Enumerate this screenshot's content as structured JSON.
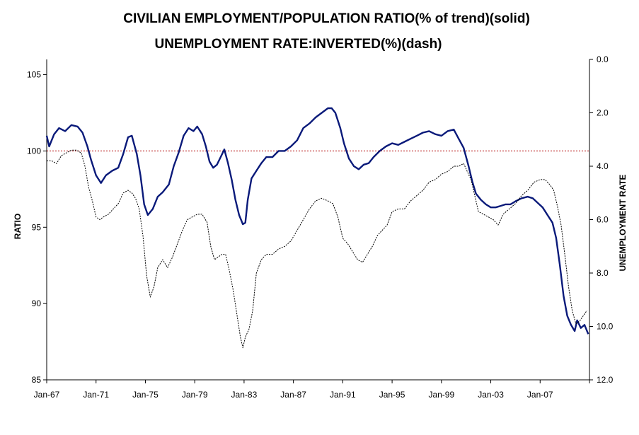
{
  "chart_data": {
    "type": "line",
    "title": "CIVILIAN EMPLOYMENT/POPULATION RATIO(% of trend)(solid)",
    "subtitle": "UNEMPLOYMENT RATE:INVERTED(%)(dash)",
    "ylabel": "RATIO",
    "y2label": "UNEMPLOYMENT RATE",
    "ylim": [
      85,
      106
    ],
    "yticks": [
      85,
      90,
      95,
      100,
      105
    ],
    "yticklabels": [
      "85",
      "90",
      "95",
      "100",
      "105"
    ],
    "y2lim": [
      12.0,
      0.0
    ],
    "y2ticks": [
      0,
      2,
      4,
      6,
      8,
      10,
      12
    ],
    "y2ticklabels": [
      "0.0",
      "2.0",
      "4.0",
      "6.0",
      "8.0",
      "10.0",
      "12.0"
    ],
    "xlim": [
      1967.0,
      2011.0
    ],
    "xticks": [
      1967,
      1971,
      1975,
      1979,
      1983,
      1987,
      1991,
      1995,
      1999,
      2003,
      2007,
      2011
    ],
    "xticklabels": [
      "Jan-67",
      "Jan-71",
      "Jan-75",
      "Jan-79",
      "Jan-83",
      "Jan-87",
      "Jan-91",
      "Jan-95",
      "Jan-99",
      "Jan-03",
      "Jan-07",
      ""
    ],
    "reference_line": {
      "value": 100,
      "style": "dotted",
      "color": "#b00000"
    },
    "series": [
      {
        "name": "Civilian employment/population ratio (% of trend)",
        "style": "solid",
        "axis": "left",
        "color": "#0a1a7a",
        "x": [
          1967.0,
          1967.2,
          1967.6,
          1968.0,
          1968.5,
          1969.0,
          1969.5,
          1969.9,
          1970.3,
          1970.6,
          1971.0,
          1971.4,
          1971.8,
          1972.3,
          1972.8,
          1973.2,
          1973.6,
          1973.9,
          1974.3,
          1974.6,
          1974.9,
          1975.2,
          1975.6,
          1976.0,
          1976.4,
          1976.9,
          1977.3,
          1977.7,
          1978.1,
          1978.5,
          1978.9,
          1979.2,
          1979.6,
          1979.9,
          1980.2,
          1980.5,
          1980.8,
          1981.1,
          1981.4,
          1981.7,
          1982.0,
          1982.3,
          1982.6,
          1982.9,
          1983.1,
          1983.3,
          1983.6,
          1984.0,
          1984.4,
          1984.8,
          1985.3,
          1985.8,
          1986.3,
          1986.8,
          1987.3,
          1987.8,
          1988.3,
          1988.8,
          1989.3,
          1989.8,
          1990.1,
          1990.4,
          1990.8,
          1991.1,
          1991.5,
          1991.9,
          1992.3,
          1992.7,
          1993.1,
          1993.5,
          1994.0,
          1994.5,
          1995.0,
          1995.5,
          1996.0,
          1996.5,
          1997.0,
          1997.5,
          1998.0,
          1998.5,
          1999.0,
          1999.5,
          2000.0,
          2000.4,
          2000.8,
          2001.2,
          2001.5,
          2001.8,
          2002.2,
          2002.6,
          2003.0,
          2003.4,
          2003.8,
          2004.2,
          2004.6,
          2005.0,
          2005.5,
          2006.0,
          2006.4,
          2006.8,
          2007.2,
          2007.6,
          2008.0,
          2008.3,
          2008.6,
          2008.9,
          2009.2,
          2009.5,
          2009.8,
          2010.0,
          2010.3,
          2010.6,
          2010.9
        ],
        "values": [
          101.0,
          100.3,
          101.1,
          101.5,
          101.3,
          101.7,
          101.6,
          101.2,
          100.3,
          99.4,
          98.4,
          97.9,
          98.4,
          98.7,
          98.9,
          99.8,
          100.9,
          101.0,
          99.8,
          98.4,
          96.5,
          95.8,
          96.2,
          97.0,
          97.3,
          97.8,
          99.0,
          99.9,
          101.0,
          101.5,
          101.3,
          101.6,
          101.1,
          100.3,
          99.3,
          98.9,
          99.1,
          99.6,
          100.1,
          99.2,
          98.1,
          96.8,
          95.8,
          95.2,
          95.3,
          96.8,
          98.2,
          98.7,
          99.2,
          99.6,
          99.6,
          100.0,
          100.0,
          100.3,
          100.7,
          101.5,
          101.8,
          102.2,
          102.5,
          102.8,
          102.8,
          102.5,
          101.5,
          100.5,
          99.5,
          99.0,
          98.8,
          99.1,
          99.2,
          99.6,
          100.0,
          100.3,
          100.5,
          100.4,
          100.6,
          100.8,
          101.0,
          101.2,
          101.3,
          101.1,
          101.0,
          101.3,
          101.4,
          100.8,
          100.2,
          99.0,
          98.0,
          97.2,
          96.8,
          96.5,
          96.3,
          96.3,
          96.4,
          96.5,
          96.5,
          96.7,
          96.9,
          97.0,
          96.9,
          96.6,
          96.3,
          95.8,
          95.3,
          94.3,
          92.5,
          90.5,
          89.2,
          88.6,
          88.2,
          88.9,
          88.4,
          88.6,
          88.0
        ]
      },
      {
        "name": "Unemployment rate, inverted (%)",
        "style": "dash",
        "axis": "right",
        "color": "#000000",
        "x": [
          1967.0,
          1967.4,
          1967.8,
          1968.2,
          1968.6,
          1969.0,
          1969.4,
          1969.8,
          1970.1,
          1970.4,
          1970.7,
          1971.0,
          1971.3,
          1971.6,
          1972.0,
          1972.4,
          1972.8,
          1973.2,
          1973.6,
          1973.9,
          1974.2,
          1974.5,
          1974.8,
          1975.1,
          1975.4,
          1975.7,
          1976.0,
          1976.4,
          1976.8,
          1977.2,
          1977.6,
          1978.0,
          1978.4,
          1978.8,
          1979.2,
          1979.6,
          1980.0,
          1980.3,
          1980.6,
          1980.9,
          1981.2,
          1981.5,
          1981.8,
          1982.1,
          1982.4,
          1982.7,
          1982.9,
          1983.1,
          1983.4,
          1983.7,
          1984.0,
          1984.4,
          1984.8,
          1985.3,
          1985.8,
          1986.3,
          1986.8,
          1987.3,
          1987.8,
          1988.3,
          1988.8,
          1989.3,
          1989.8,
          1990.2,
          1990.6,
          1991.0,
          1991.4,
          1991.8,
          1992.2,
          1992.6,
          1993.0,
          1993.4,
          1993.8,
          1994.2,
          1994.6,
          1995.0,
          1995.5,
          1996.0,
          1996.5,
          1997.0,
          1997.5,
          1998.0,
          1998.5,
          1999.0,
          1999.5,
          2000.0,
          2000.4,
          2000.8,
          2001.1,
          2001.4,
          2001.7,
          2002.0,
          2002.4,
          2002.8,
          2003.2,
          2003.6,
          2004.0,
          2004.5,
          2005.0,
          2005.5,
          2006.0,
          2006.5,
          2007.0,
          2007.4,
          2007.8,
          2008.1,
          2008.4,
          2008.7,
          2009.0,
          2009.3,
          2009.6,
          2009.9,
          2010.2,
          2010.5,
          2010.8
        ],
        "values": [
          3.8,
          3.8,
          3.9,
          3.6,
          3.5,
          3.4,
          3.4,
          3.5,
          4.0,
          4.8,
          5.3,
          5.9,
          6.0,
          5.9,
          5.8,
          5.6,
          5.4,
          5.0,
          4.9,
          5.0,
          5.2,
          5.6,
          6.6,
          8.1,
          8.9,
          8.5,
          7.8,
          7.5,
          7.8,
          7.4,
          6.9,
          6.4,
          6.0,
          5.9,
          5.8,
          5.8,
          6.1,
          7.0,
          7.5,
          7.4,
          7.3,
          7.3,
          7.9,
          8.6,
          9.5,
          10.4,
          10.8,
          10.4,
          10.1,
          9.4,
          8.0,
          7.5,
          7.3,
          7.3,
          7.1,
          7.0,
          6.8,
          6.4,
          6.0,
          5.6,
          5.3,
          5.2,
          5.3,
          5.4,
          5.9,
          6.7,
          6.9,
          7.2,
          7.5,
          7.6,
          7.3,
          7.0,
          6.6,
          6.4,
          6.2,
          5.7,
          5.6,
          5.6,
          5.3,
          5.1,
          4.9,
          4.6,
          4.5,
          4.3,
          4.2,
          4.0,
          4.0,
          3.9,
          4.2,
          4.5,
          5.1,
          5.7,
          5.8,
          5.9,
          6.0,
          6.2,
          5.8,
          5.6,
          5.4,
          5.1,
          4.9,
          4.6,
          4.5,
          4.5,
          4.7,
          4.9,
          5.5,
          6.2,
          7.3,
          8.5,
          9.4,
          9.9,
          9.8,
          9.6,
          9.4
        ]
      }
    ]
  }
}
